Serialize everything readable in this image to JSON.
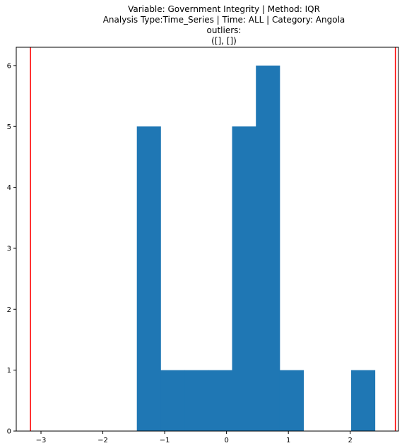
{
  "chart_data": {
    "type": "bar",
    "title_lines": [
      "Variable: Government Integrity | Method: IQR",
      "Analysis Type:Time_Series | Time: ALL | Category: Angola",
      "outliers:",
      "([], [])"
    ],
    "xlabel": "",
    "ylabel": "",
    "xlim": [
      -3.4,
      2.78
    ],
    "ylim": [
      0,
      6.3
    ],
    "x_ticks": [
      -3,
      -2,
      -1,
      0,
      1,
      2
    ],
    "y_ticks": [
      0,
      1,
      2,
      3,
      4,
      5,
      6
    ],
    "bin_edges": [
      -1.45,
      -1.065,
      -0.68,
      -0.295,
      0.09,
      0.475,
      0.86,
      1.245,
      1.63,
      2.015,
      2.4
    ],
    "bin_counts": [
      5,
      1,
      1,
      1,
      5,
      6,
      1,
      0,
      0,
      1
    ],
    "bar_color": "#1f77b4",
    "threshold_lines": [
      -3.17,
      2.73
    ],
    "threshold_color": "#ff0000",
    "grid": false
  }
}
